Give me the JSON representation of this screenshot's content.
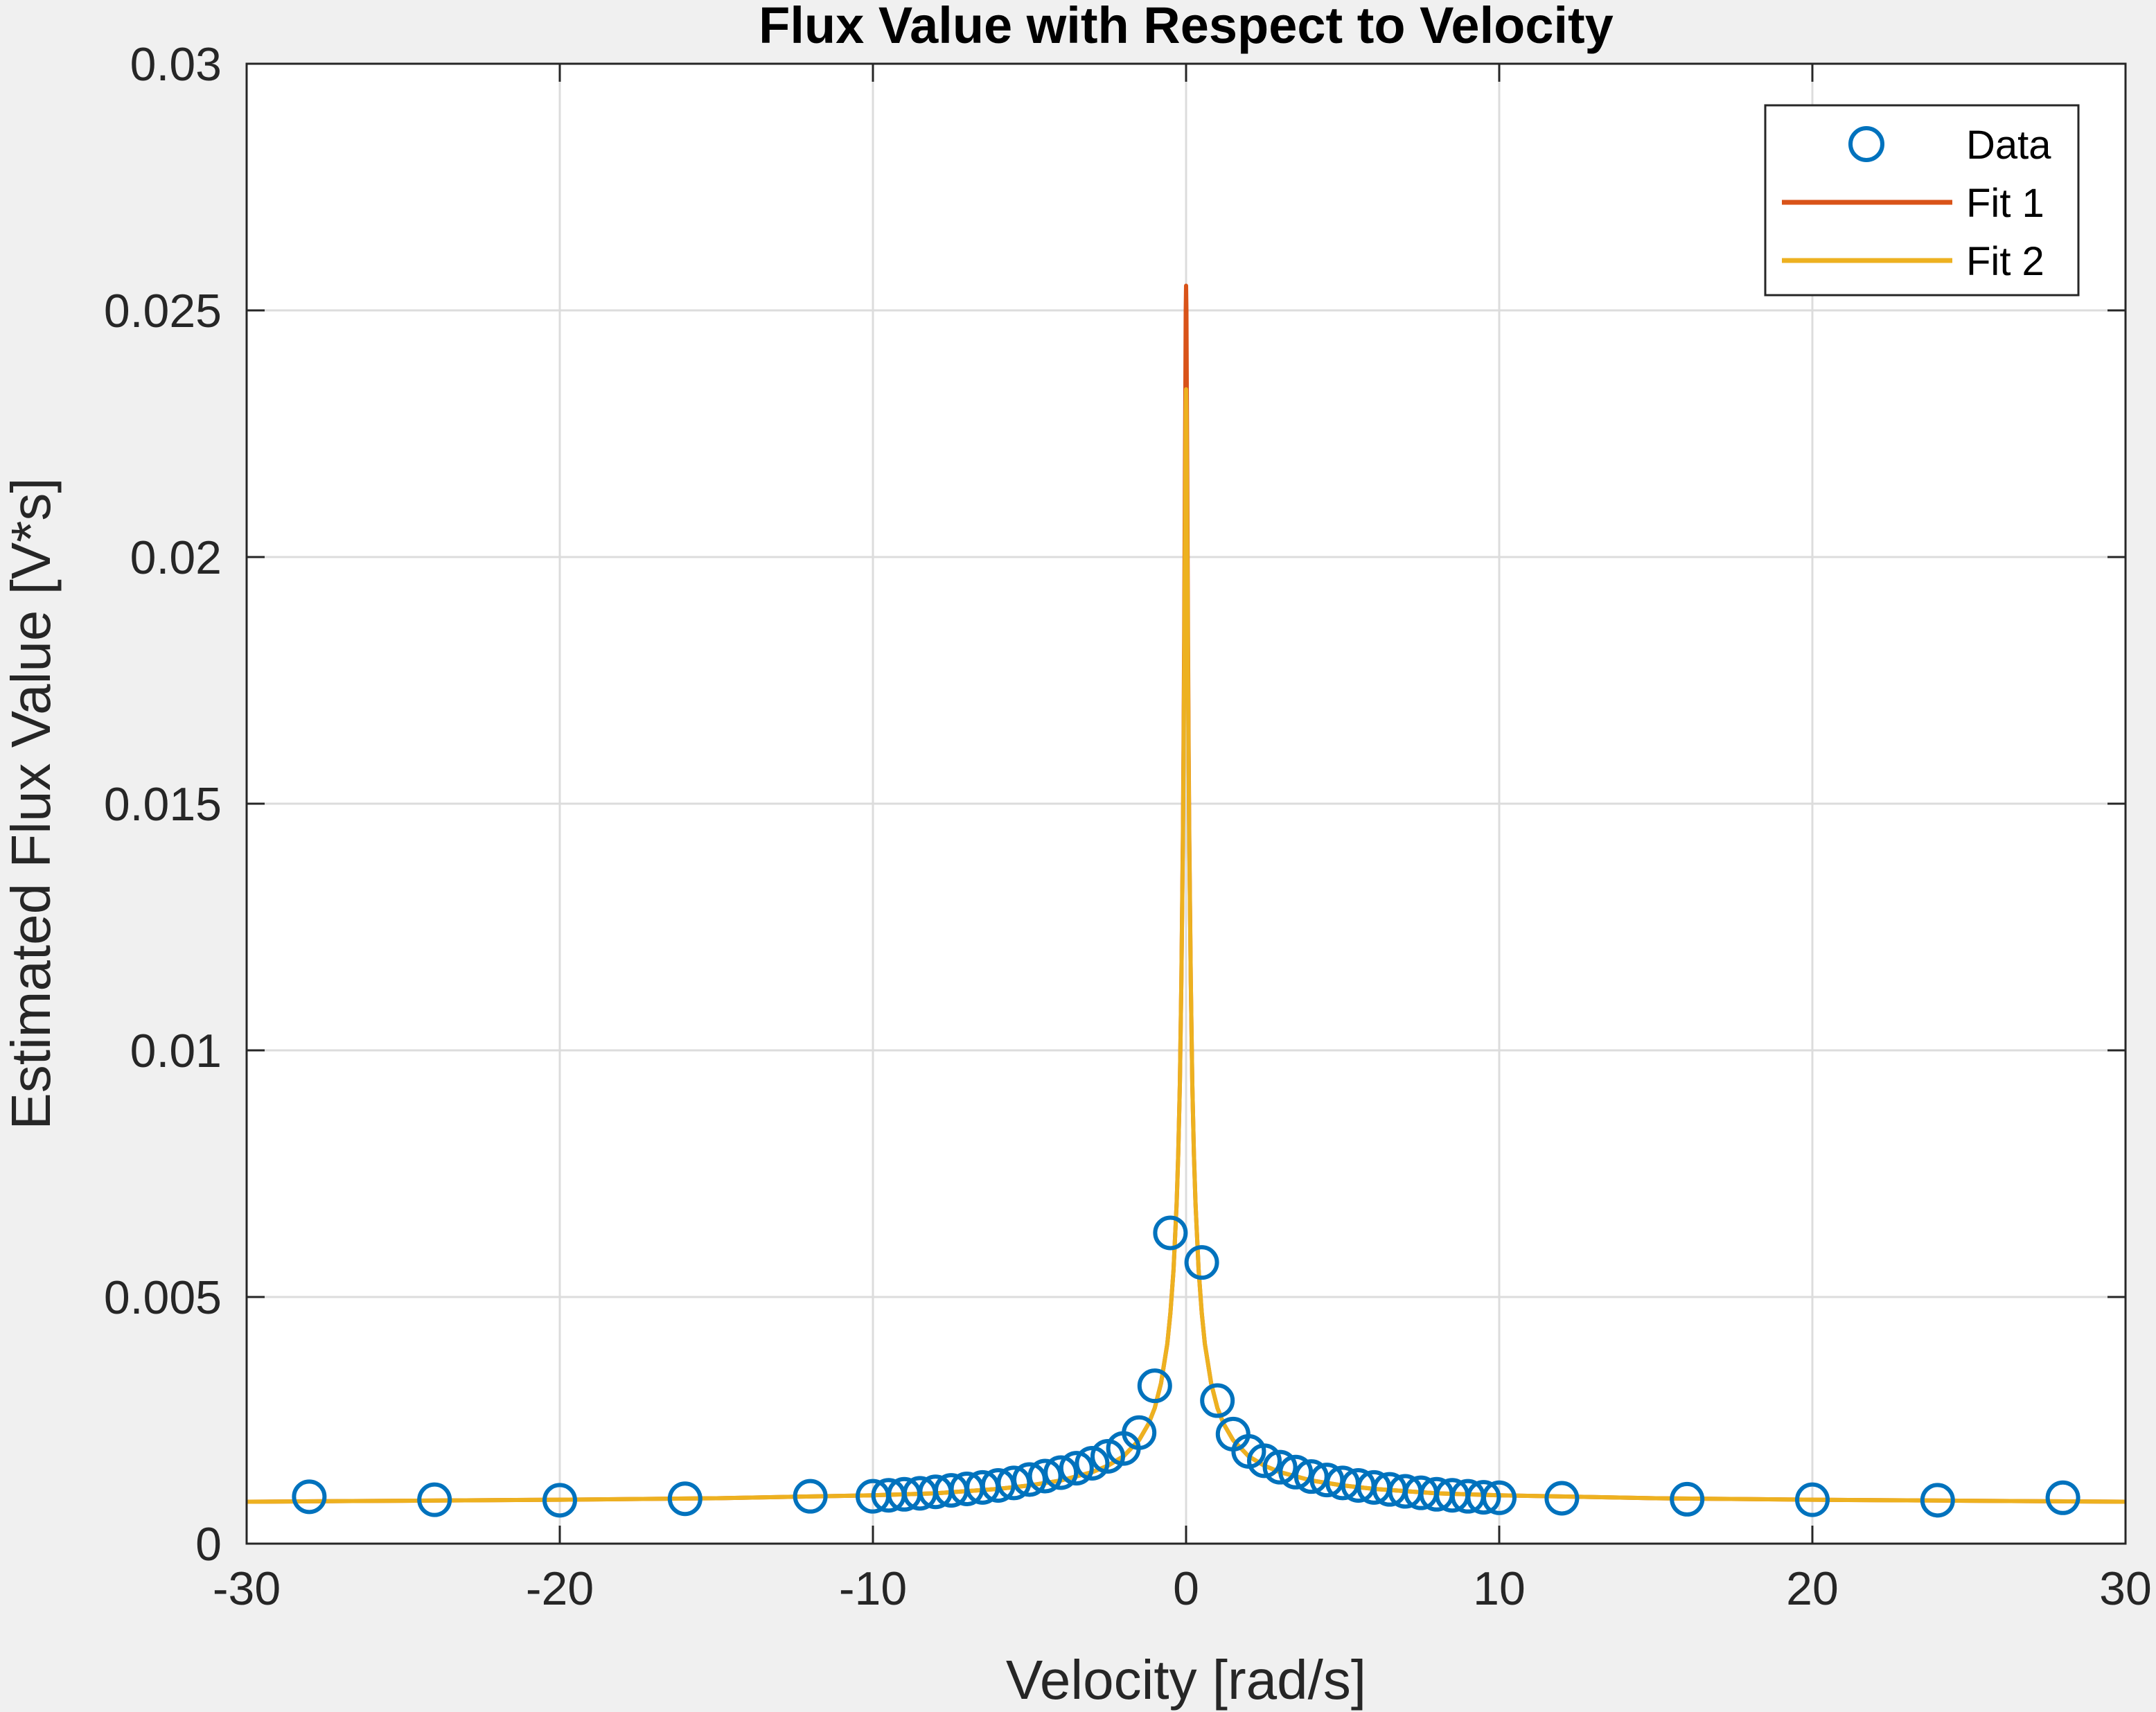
{
  "chart_data": {
    "type": "scatter",
    "title": "Flux Value with Respect to Velocity",
    "xlabel": "Velocity [rad/s]",
    "ylabel": "Estimated Flux Value [V*s]",
    "xlim": [
      -30,
      30
    ],
    "ylim": [
      0,
      0.03
    ],
    "x_ticks": [
      -30,
      -20,
      -10,
      0,
      10,
      20,
      30
    ],
    "x_tick_labels": [
      "-30",
      "-20",
      "-10",
      "0",
      "10",
      "20",
      "30"
    ],
    "y_ticks": [
      0,
      0.005,
      0.01,
      0.015,
      0.02,
      0.025,
      0.03
    ],
    "y_tick_labels": [
      "0",
      "0.005",
      "0.01",
      "0.015",
      "0.02",
      "0.025",
      "0.03"
    ],
    "grid": true,
    "legend_position": "top-right",
    "series": [
      {
        "name": "Data",
        "kind": "markers",
        "marker": "circle",
        "color": "#0072bd",
        "x": [
          -28,
          -24,
          -20,
          -16,
          -12,
          -10,
          -9.5,
          -9,
          -8.5,
          -8,
          -7.5,
          -7,
          -6.5,
          -6,
          -5.5,
          -5,
          -4.5,
          -4,
          -3.5,
          -3,
          -2.5,
          -2,
          -1.5,
          -1,
          -0.5,
          0.5,
          1,
          1.5,
          2,
          2.5,
          3,
          3.5,
          4,
          4.5,
          5,
          5.5,
          6,
          6.5,
          7,
          7.5,
          8,
          8.5,
          9,
          9.5,
          10,
          12,
          16,
          20,
          24,
          28
        ],
        "y": [
          0.00095,
          0.00089,
          0.00088,
          0.00091,
          0.00096,
          0.00096,
          0.00098,
          0.001,
          0.00102,
          0.00105,
          0.00108,
          0.00111,
          0.00114,
          0.00118,
          0.00123,
          0.0013,
          0.00137,
          0.00144,
          0.00153,
          0.00163,
          0.00177,
          0.00193,
          0.00225,
          0.0032,
          0.0063,
          0.0057,
          0.0029,
          0.00222,
          0.00187,
          0.00168,
          0.00155,
          0.00145,
          0.00136,
          0.00129,
          0.00123,
          0.00118,
          0.00114,
          0.0011,
          0.00106,
          0.00103,
          0.001,
          0.00098,
          0.00096,
          0.00094,
          0.00093,
          0.00092,
          0.0009,
          0.00089,
          0.00088,
          0.00093
        ]
      },
      {
        "name": "Fit 1",
        "kind": "line",
        "color": "#d95319",
        "x": [
          -30,
          -25,
          -20,
          -15,
          -10,
          -8,
          -6,
          -5,
          -4,
          -3,
          -2.5,
          -2,
          -1.5,
          -1.2,
          -1,
          -0.8,
          -0.6,
          -0.5,
          -0.4,
          -0.3,
          -0.25,
          -0.2,
          -0.15,
          -0.1,
          -0.08,
          -0.06,
          -0.04,
          -0.02,
          -0.01,
          0,
          0.01,
          0.02,
          0.04,
          0.06,
          0.08,
          0.1,
          0.15,
          0.2,
          0.25,
          0.3,
          0.4,
          0.5,
          0.6,
          0.8,
          1,
          1.2,
          1.5,
          2,
          2.5,
          3,
          4,
          5,
          6,
          8,
          10,
          15,
          20,
          25,
          30
        ],
        "y": [
          0.00085,
          0.00087,
          0.00089,
          0.00092,
          0.00098,
          0.00102,
          0.00111,
          0.00118,
          0.00128,
          0.00145,
          0.00158,
          0.00177,
          0.0021,
          0.00243,
          0.00275,
          0.00325,
          0.00405,
          0.00468,
          0.00555,
          0.0069,
          0.0079,
          0.0093,
          0.0114,
          0.0145,
          0.0163,
          0.0185,
          0.0212,
          0.0238,
          0.025,
          0.0255,
          0.025,
          0.0238,
          0.0212,
          0.0185,
          0.0163,
          0.0145,
          0.0114,
          0.0093,
          0.0079,
          0.0069,
          0.00555,
          0.00468,
          0.00405,
          0.00325,
          0.00275,
          0.00243,
          0.0021,
          0.00177,
          0.00158,
          0.00145,
          0.00128,
          0.00118,
          0.00111,
          0.00102,
          0.00098,
          0.00092,
          0.00089,
          0.00087,
          0.00085
        ]
      },
      {
        "name": "Fit 2",
        "kind": "line",
        "color": "#edb120",
        "x": [
          -30,
          -25,
          -20,
          -15,
          -10,
          -8,
          -6,
          -5,
          -4,
          -3,
          -2.5,
          -2,
          -1.5,
          -1.2,
          -1,
          -0.8,
          -0.6,
          -0.5,
          -0.4,
          -0.3,
          -0.25,
          -0.2,
          -0.15,
          -0.1,
          -0.08,
          -0.06,
          -0.04,
          -0.02,
          -0.01,
          0,
          0.01,
          0.02,
          0.04,
          0.06,
          0.08,
          0.1,
          0.15,
          0.2,
          0.25,
          0.3,
          0.4,
          0.5,
          0.6,
          0.8,
          1,
          1.2,
          1.5,
          2,
          2.5,
          3,
          4,
          5,
          6,
          8,
          10,
          15,
          20,
          25,
          30
        ],
        "y": [
          0.00085,
          0.00087,
          0.00089,
          0.00092,
          0.00098,
          0.00102,
          0.00111,
          0.00118,
          0.00128,
          0.00145,
          0.00158,
          0.00177,
          0.0021,
          0.00243,
          0.00275,
          0.00325,
          0.00405,
          0.00468,
          0.00555,
          0.0069,
          0.0079,
          0.0093,
          0.0114,
          0.0143,
          0.0159,
          0.0178,
          0.0199,
          0.0219,
          0.0229,
          0.0234,
          0.0229,
          0.0219,
          0.0199,
          0.0178,
          0.0159,
          0.0143,
          0.0114,
          0.0093,
          0.0079,
          0.0069,
          0.00555,
          0.00468,
          0.00405,
          0.00325,
          0.00275,
          0.00243,
          0.0021,
          0.00177,
          0.00158,
          0.00145,
          0.00128,
          0.00118,
          0.00111,
          0.00102,
          0.00098,
          0.00092,
          0.00089,
          0.00087,
          0.00085
        ]
      }
    ]
  }
}
